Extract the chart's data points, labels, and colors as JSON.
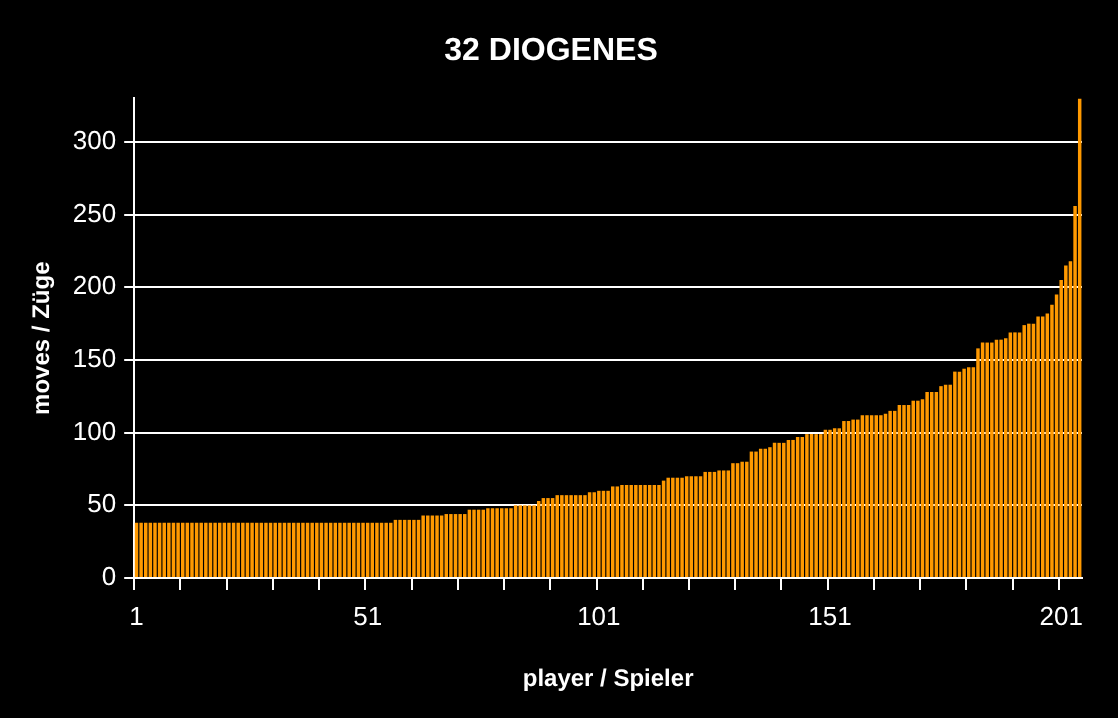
{
  "chart_data": {
    "type": "bar",
    "title": "32 DIOGENES",
    "xlabel": "player / Spieler",
    "ylabel": "moves / Züge",
    "categories": [
      "1",
      null,
      null,
      null,
      null,
      null,
      null,
      null,
      null,
      null,
      null,
      null,
      null,
      null,
      null,
      null,
      null,
      null,
      null,
      null,
      null,
      null,
      null,
      null,
      null,
      null,
      null,
      null,
      null,
      null,
      null,
      null,
      null,
      null,
      null,
      null,
      null,
      null,
      null,
      null,
      null,
      null,
      null,
      null,
      null,
      null,
      null,
      null,
      null,
      null,
      "51",
      null,
      null,
      null,
      null,
      null,
      null,
      null,
      null,
      null,
      null,
      null,
      null,
      null,
      null,
      null,
      null,
      null,
      null,
      null,
      null,
      null,
      null,
      null,
      null,
      null,
      null,
      null,
      null,
      null,
      null,
      null,
      null,
      null,
      null,
      null,
      null,
      null,
      null,
      null,
      null,
      null,
      null,
      null,
      null,
      null,
      null,
      null,
      null,
      null,
      "101",
      null,
      null,
      null,
      null,
      null,
      null,
      null,
      null,
      null,
      null,
      null,
      null,
      null,
      null,
      null,
      null,
      null,
      null,
      null,
      null,
      null,
      null,
      null,
      null,
      null,
      null,
      null,
      null,
      null,
      null,
      null,
      null,
      null,
      null,
      null,
      null,
      null,
      null,
      null,
      null,
      null,
      null,
      null,
      null,
      null,
      null,
      null,
      null,
      null,
      "151",
      null,
      null,
      null,
      null,
      null,
      null,
      null,
      null,
      null,
      null,
      null,
      null,
      null,
      null,
      null,
      null,
      null,
      null,
      null,
      null,
      null,
      null,
      null,
      null,
      null,
      null,
      null,
      null,
      null,
      null,
      null,
      null,
      null,
      null,
      null,
      null,
      null,
      null,
      null,
      null,
      null,
      null,
      null,
      null,
      null,
      null,
      null,
      null,
      null,
      "201",
      null,
      null,
      null,
      null
    ],
    "values": [
      38,
      38,
      38,
      38,
      38,
      38,
      38,
      38,
      38,
      38,
      38,
      38,
      38,
      38,
      38,
      38,
      38,
      38,
      38,
      38,
      38,
      38,
      38,
      38,
      38,
      38,
      38,
      38,
      38,
      38,
      38,
      38,
      38,
      38,
      38,
      38,
      38,
      38,
      38,
      38,
      38,
      38,
      38,
      38,
      38,
      38,
      38,
      38,
      38,
      38,
      38,
      38,
      38,
      38,
      38,
      38,
      40,
      40,
      40,
      40,
      40,
      40,
      43,
      43,
      43,
      43,
      43,
      44,
      44,
      44,
      44,
      44,
      47,
      47,
      47,
      47,
      48,
      48,
      48,
      48,
      48,
      48,
      50,
      50,
      50,
      50,
      50,
      53,
      55,
      55,
      55,
      57,
      57,
      57,
      57,
      57,
      57,
      57,
      59,
      59,
      60,
      60,
      60,
      63,
      63,
      64,
      64,
      64,
      64,
      64,
      64,
      64,
      64,
      64,
      67,
      69,
      69,
      69,
      69,
      70,
      70,
      70,
      70,
      73,
      73,
      73,
      74,
      74,
      74,
      79,
      79,
      80,
      80,
      87,
      87,
      89,
      89,
      90,
      93,
      93,
      93,
      95,
      95,
      97,
      97,
      99,
      99,
      99,
      99,
      102,
      102,
      103,
      103,
      108,
      108,
      109,
      109,
      112,
      112,
      112,
      112,
      112,
      113,
      115,
      115,
      119,
      119,
      119,
      122,
      122,
      123,
      128,
      128,
      128,
      132,
      133,
      133,
      142,
      142,
      144,
      145,
      145,
      158,
      162,
      162,
      162,
      164,
      164,
      165,
      169,
      169,
      169,
      174,
      175,
      175,
      180,
      180,
      182,
      188,
      195,
      205,
      215,
      218,
      256,
      330
    ],
    "color": "#ff9900",
    "ylim": [
      0,
      330
    ],
    "yticks": [
      0,
      50,
      100,
      150,
      200,
      250,
      300
    ],
    "grid": "y",
    "legend": false
  }
}
